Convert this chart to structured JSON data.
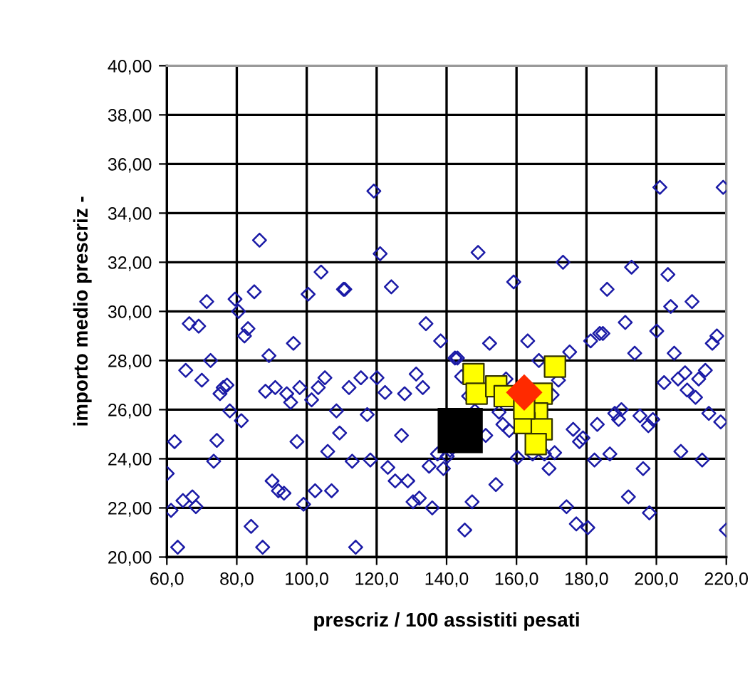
{
  "chart_data": {
    "type": "scatter",
    "xlabel": "prescriz / 100 assistiti pesati",
    "ylabel": "importo medio prescriz -",
    "xlim": [
      60,
      220
    ],
    "ylim": [
      20,
      40
    ],
    "xticks": [
      {
        "value": 60,
        "label": "60,0"
      },
      {
        "value": 80,
        "label": "80,0"
      },
      {
        "value": 100,
        "label": "100,0"
      },
      {
        "value": 120,
        "label": "120,0"
      },
      {
        "value": 140,
        "label": "140,0"
      },
      {
        "value": 160,
        "label": "160,0"
      },
      {
        "value": 180,
        "label": "180,0"
      },
      {
        "value": 200,
        "label": "200,0"
      },
      {
        "value": 220,
        "label": "220,0"
      }
    ],
    "yticks": [
      {
        "value": 20,
        "label": "20,00"
      },
      {
        "value": 22,
        "label": "22,00"
      },
      {
        "value": 24,
        "label": "24,00"
      },
      {
        "value": 26,
        "label": "26,00"
      },
      {
        "value": 28,
        "label": "28,00"
      },
      {
        "value": 30,
        "label": "30,00"
      },
      {
        "value": 32,
        "label": "32,00"
      },
      {
        "value": 34,
        "label": "34,00"
      },
      {
        "value": 36,
        "label": "36,00"
      },
      {
        "value": 38,
        "label": "38,00"
      },
      {
        "value": 40,
        "label": "40,00"
      }
    ],
    "grid": true,
    "legend": false,
    "series": [
      {
        "color": "#1a1aa6",
        "marker": "diamond",
        "x": [
          119.2,
          86.5,
          121,
          104.1,
          71.4,
          79.5,
          85,
          100.4,
          110.5,
          110.9,
          124.2,
          80.5,
          201,
          219.1,
          149,
          159.2,
          173.3,
          185.9,
          192.9,
          203.3,
          204.1,
          210.2,
          66.4,
          69.1,
          83.2,
          82.2,
          96.2,
          134.1,
          138.3,
          142.4,
          72.5,
          89.2,
          65.4,
          70,
          77.2,
          76.1,
          75.2,
          88.2,
          91,
          94.3,
          95.4,
          98,
          101.4,
          103.3,
          105.2,
          108.5,
          112.1,
          115.5,
          120.1,
          122.4,
          128,
          131.3,
          133.2,
          78,
          81.3,
          117.3,
          62.2,
          74.3,
          97.2,
          109.4,
          106,
          127.1,
          73.4,
          113,
          118.2,
          123.2,
          125.3,
          128.9,
          135,
          137.4,
          139.1,
          140.2,
          141,
          60.1,
          90.1,
          91.9,
          93.5,
          102.4,
          107.1,
          99.1,
          64.6,
          67.3,
          68.3,
          61.2,
          130.4,
          132.2,
          135.9,
          84.1,
          63.1,
          87.4,
          114,
          191.1,
          200.1,
          184.7,
          183.8,
          181.2,
          217.3,
          216,
          152.3,
          163.2,
          175.2,
          193.8,
          205.1,
          143.1,
          166.4,
          172,
          157,
          144.3,
          202.2,
          206.2,
          208.2,
          212.1,
          214,
          208.8,
          211.2,
          170.2,
          146.3,
          148.1,
          155,
          156.1,
          157.9,
          151.2,
          188.1,
          190,
          189.2,
          195.3,
          199,
          197.7,
          215,
          218.4,
          183.1,
          176.2,
          179,
          178,
          170.9,
          168,
          164.6,
          160.3,
          169.3,
          182.3,
          186.7,
          207,
          213.1,
          196.2,
          154.1,
          192,
          147.3,
          174.3,
          198,
          145.2,
          177.1,
          180.4,
          220
        ],
        "values": [
          34.9,
          32.9,
          32.35,
          31.6,
          30.4,
          30.5,
          30.8,
          30.7,
          30.9,
          30.9,
          31,
          30,
          35.05,
          35.05,
          32.4,
          31.2,
          32,
          30.9,
          31.8,
          31.5,
          30.2,
          30.4,
          29.5,
          29.4,
          29.3,
          29,
          28.7,
          29.5,
          28.8,
          28.1,
          28,
          28.2,
          27.6,
          27.2,
          27,
          26.9,
          26.65,
          26.75,
          26.9,
          26.65,
          26.3,
          26.9,
          26.4,
          26.9,
          27.3,
          25.95,
          26.9,
          27.3,
          27.3,
          26.7,
          26.65,
          27.45,
          26.9,
          25.95,
          25.55,
          25.8,
          24.7,
          24.75,
          24.7,
          25.05,
          24.3,
          24.95,
          23.9,
          23.9,
          23.95,
          23.65,
          23.1,
          23.1,
          23.7,
          24.2,
          23.6,
          24.1,
          24.35,
          23.4,
          23.1,
          22.7,
          22.6,
          22.7,
          22.7,
          22.15,
          22.3,
          22.45,
          22.05,
          21.9,
          22.25,
          22.4,
          22,
          21.25,
          20.4,
          20.4,
          20.4,
          29.55,
          29.2,
          29.1,
          29.1,
          28.8,
          29,
          28.7,
          28.7,
          28.8,
          28.35,
          28.3,
          28.3,
          28.1,
          28,
          27.2,
          27.25,
          27.35,
          27.1,
          27.25,
          27.5,
          27.25,
          27.6,
          26.8,
          26.5,
          26.6,
          26.55,
          25.95,
          25.9,
          25.4,
          25.15,
          24.95,
          25.85,
          26,
          25.6,
          25.75,
          25.6,
          25.35,
          25.85,
          25.5,
          25.4,
          25.2,
          24.85,
          24.7,
          24.25,
          24.2,
          24.2,
          24.05,
          23.6,
          23.95,
          24.2,
          24.3,
          23.95,
          23.6,
          22.95,
          22.45,
          22.25,
          22.05,
          21.8,
          21.1,
          21.35,
          21.2,
          21.1
        ]
      },
      {
        "color": "#ffff00",
        "marker": "square",
        "x": [
          147.7,
          148.6,
          154.2,
          156.6,
          167.2,
          171,
          165.9,
          162.3,
          167.2,
          165.5,
          162.2
        ],
        "values": [
          27.45,
          26.65,
          26.95,
          26.55,
          26.65,
          27.75,
          25.85,
          25.45,
          25.2,
          24.6,
          26.05
        ]
      },
      {
        "color": "#ff2a00",
        "marker": "diamond",
        "x": [
          162.2
        ],
        "values": [
          26.7
        ]
      },
      {
        "color": "#000000",
        "marker": "square",
        "x": [
          143.9
        ],
        "values": [
          25.15
        ]
      }
    ]
  }
}
